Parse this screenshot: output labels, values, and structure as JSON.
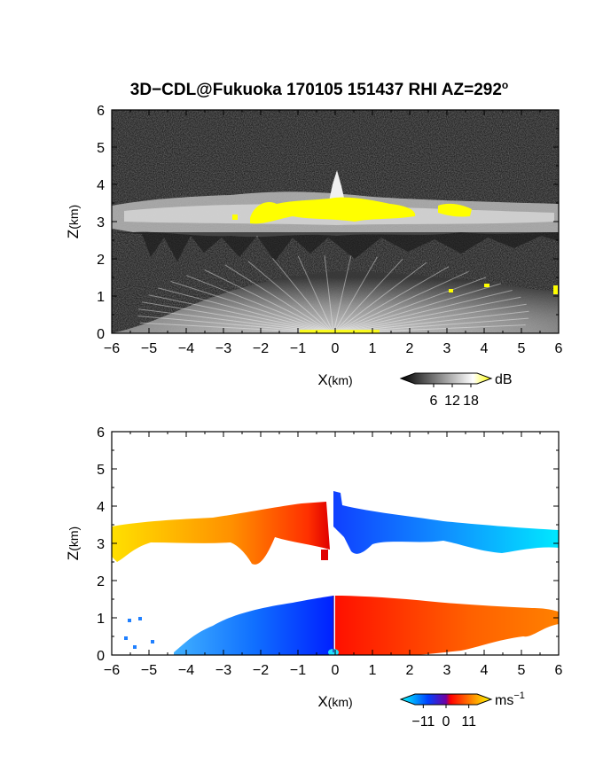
{
  "figure": {
    "title_main": "3D−CDL@Fukuoka 170105 151437 RHI AZ=292",
    "title_sup": "o"
  },
  "chart_data": [
    {
      "type": "heatmap",
      "panel": "reflectivity",
      "xlabel_main": "X",
      "xlabel_unit": "(km)",
      "ylabel_main": "Z",
      "ylabel_unit": "(km)",
      "xlim": [
        -6,
        6
      ],
      "ylim": [
        0,
        6
      ],
      "x_ticks": [
        "−6",
        "−5",
        "−4",
        "−3",
        "−2",
        "−1",
        "0",
        "1",
        "2",
        "3",
        "4",
        "5",
        "6"
      ],
      "y_ticks": [
        "0",
        "1",
        "2",
        "3",
        "4",
        "5",
        "6"
      ],
      "colorbar": {
        "unit": "dB",
        "ticks": [
          "6",
          "12",
          "18"
        ],
        "tick_values": [
          6,
          12,
          18
        ],
        "range": [
          0,
          20
        ],
        "colors": [
          "#000000",
          "#ffffff",
          "#ffff00"
        ]
      },
      "features": {
        "cloud_layer_km": [
          2.7,
          3.7
        ],
        "peak_at_x0_km": 4.3,
        "high_values_region_x_km": [
          -2.3,
          3.7
        ],
        "fan_echo_top_km": 1.5
      }
    },
    {
      "type": "heatmap",
      "panel": "doppler_velocity",
      "xlabel_main": "X",
      "xlabel_unit": "(km)",
      "ylabel_main": "Z",
      "ylabel_unit": "(km)",
      "xlim": [
        -6,
        6
      ],
      "ylim": [
        0,
        6
      ],
      "x_ticks": [
        "−6",
        "−5",
        "−4",
        "−3",
        "−2",
        "−1",
        "0",
        "1",
        "2",
        "3",
        "4",
        "5",
        "6"
      ],
      "y_ticks": [
        "0",
        "1",
        "2",
        "3",
        "4",
        "5",
        "6"
      ],
      "colorbar": {
        "unit_main": "ms",
        "unit_sup": "−1",
        "ticks": [
          "−11",
          "0",
          "11"
        ],
        "tick_values": [
          -11,
          0,
          11
        ],
        "range": [
          -15,
          15
        ],
        "colors": [
          "#00ffff",
          "#0040ff",
          "#ff0000",
          "#ffff00"
        ]
      },
      "features": {
        "upper_layer_km": [
          2.6,
          3.8
        ],
        "lower_layer_top_km": 1.5,
        "peak_at_x0_km": 4.3
      }
    }
  ]
}
